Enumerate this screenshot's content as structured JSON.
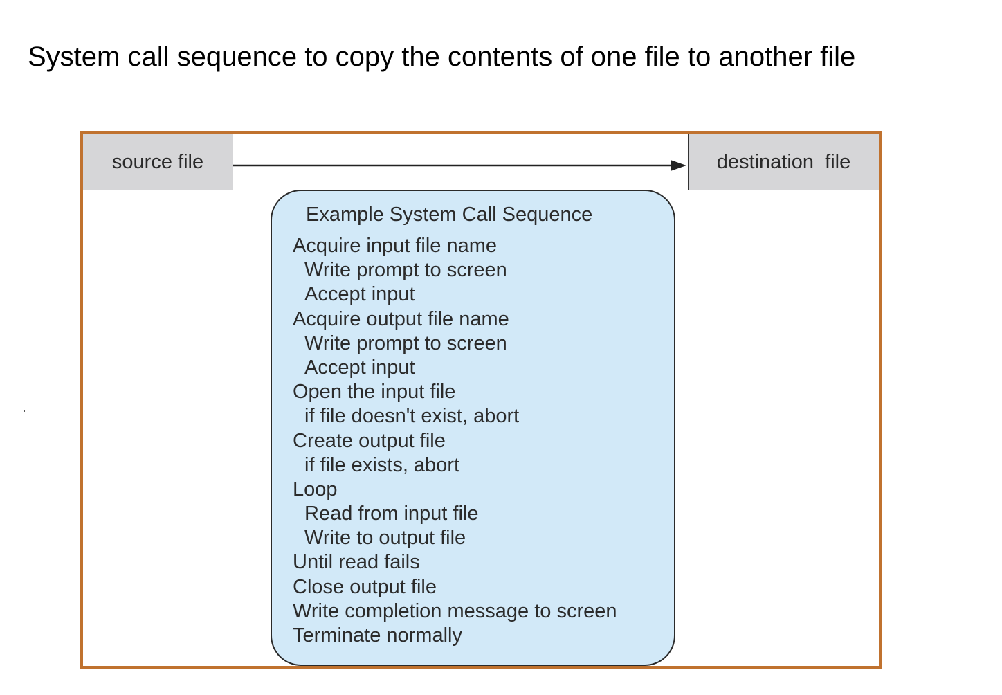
{
  "title": "System call sequence to copy the contents of one file to another file",
  "diagram": {
    "source_label": "source file",
    "destination_label": "destination  file",
    "sequence_heading": "Example System Call Sequence",
    "steps": [
      {
        "text": "Acquire input file name",
        "level": 0
      },
      {
        "text": "Write prompt to screen",
        "level": 1
      },
      {
        "text": "Accept input",
        "level": 1
      },
      {
        "text": "Acquire output file name",
        "level": 0
      },
      {
        "text": "Write prompt to screen",
        "level": 1
      },
      {
        "text": "Accept input",
        "level": 1
      },
      {
        "text": "Open the input file",
        "level": 0
      },
      {
        "text": "if file doesn't exist, abort",
        "level": 1
      },
      {
        "text": "Create output file",
        "level": 0
      },
      {
        "text": "if file exists, abort",
        "level": 1
      },
      {
        "text": "Loop",
        "level": 0
      },
      {
        "text": "Read from input file",
        "level": 1
      },
      {
        "text": "Write to output file",
        "level": 1
      },
      {
        "text": "Until read fails",
        "level": 0
      },
      {
        "text": "Close output file",
        "level": 0
      },
      {
        "text": "Write completion message to screen",
        "level": 0
      },
      {
        "text": "Terminate normally",
        "level": 0
      }
    ]
  },
  "colors": {
    "frame_border": "#c0722f",
    "file_box_fill": "#d6d6d8",
    "sequence_fill": "#d2e9f8"
  }
}
